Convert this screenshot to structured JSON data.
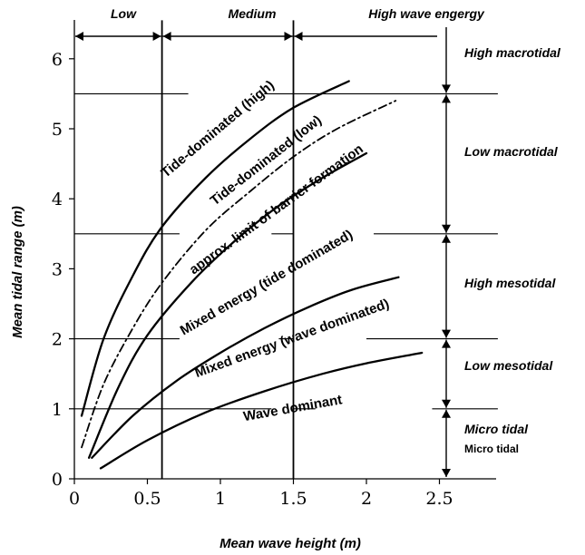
{
  "chart_data": {
    "type": "line",
    "xlabel": "Mean wave height (m)",
    "ylabel": "Mean tidal range (m)",
    "xlim": [
      0,
      2.9
    ],
    "ylim": [
      0,
      6.5
    ],
    "x_ticks": [
      "0",
      "0.5",
      "1",
      "1.5",
      "2",
      "2.5"
    ],
    "y_ticks": [
      "0",
      "1",
      "2",
      "3",
      "4",
      "5",
      "6"
    ],
    "wave_energy_classes": {
      "labels": [
        "Low",
        "Medium",
        "High wave engergy"
      ],
      "boundaries": [
        0.6,
        1.5
      ]
    },
    "tidal_classes": {
      "labels": [
        "High macrotidal",
        "Low macrotidal",
        "High mesotidal",
        "Low mesotidal",
        "Micro tidal"
      ],
      "extra_label": "Micro tidal",
      "boundaries": [
        1,
        2,
        3.5,
        5.5
      ]
    },
    "series": [
      {
        "x": [
          0.05,
          0.2,
          0.4,
          0.6,
          0.9,
          1.2,
          1.5,
          1.88
        ],
        "y": [
          0.9,
          2.0,
          2.9,
          3.6,
          4.3,
          4.85,
          5.3,
          5.68
        ],
        "style": "solid"
      },
      {
        "x": [
          0.05,
          0.2,
          0.4,
          0.6,
          0.9,
          1.2,
          1.5,
          1.8,
          2.2
        ],
        "y": [
          0.45,
          1.35,
          2.15,
          2.8,
          3.55,
          4.1,
          4.6,
          5.0,
          5.4
        ],
        "style": "dashdot"
      },
      {
        "x": [
          0.1,
          0.3,
          0.5,
          0.8,
          1.1,
          1.4,
          1.7,
          2.0
        ],
        "y": [
          0.3,
          1.3,
          2.05,
          2.8,
          3.4,
          3.9,
          4.3,
          4.65
        ],
        "style": "solid"
      },
      {
        "x": [
          0.12,
          0.4,
          0.7,
          1.0,
          1.3,
          1.6,
          1.9,
          2.22
        ],
        "y": [
          0.3,
          0.9,
          1.4,
          1.8,
          2.15,
          2.45,
          2.7,
          2.88
        ],
        "style": "solid"
      },
      {
        "x": [
          0.18,
          0.5,
          0.9,
          1.3,
          1.7,
          2.0,
          2.38
        ],
        "y": [
          0.15,
          0.55,
          0.95,
          1.25,
          1.5,
          1.65,
          1.8
        ],
        "style": "solid"
      }
    ],
    "region_labels": [
      {
        "text": "Tide-dominated (high)",
        "x": 1.0,
        "y": 4.95,
        "angle": -40
      },
      {
        "text": "Tide-dominated (low)",
        "x": 1.33,
        "y": 4.5,
        "angle": -38
      },
      {
        "text": "approx. limit of barrier formation",
        "x": 1.4,
        "y": 3.8,
        "angle": -36
      },
      {
        "text": "Mixed energy (tide dominated)",
        "x": 1.33,
        "y": 2.75,
        "angle": -30
      },
      {
        "text": "Mixed energy (wave dominated)",
        "x": 1.5,
        "y": 1.95,
        "angle": -20
      },
      {
        "text": "Wave dominant",
        "x": 1.5,
        "y": 0.95,
        "angle": -10
      }
    ]
  }
}
